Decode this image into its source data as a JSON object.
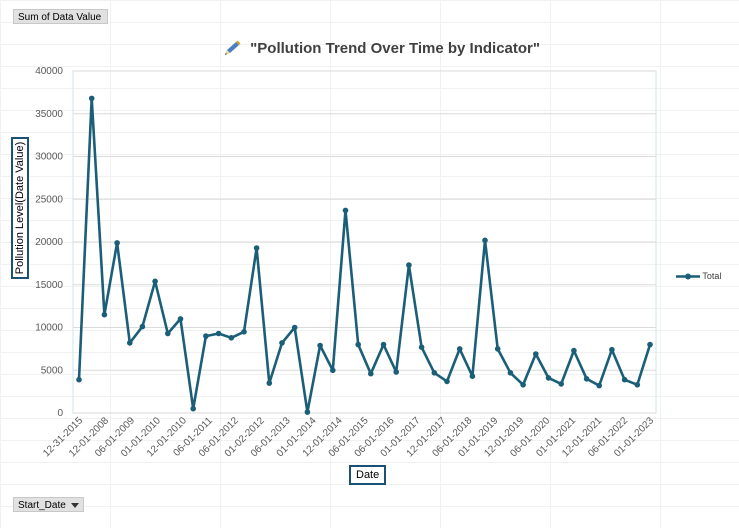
{
  "pivot_field": "Sum of Data Value",
  "date_field": "Start_Date",
  "chart_data": {
    "type": "line",
    "title": "\"Pollution Trend Over Time by Indicator\"",
    "title_icon": "pencil-icon",
    "xlabel": "Date",
    "ylabel": "Pollution Level(Date Value)",
    "ylim": [
      0,
      40000
    ],
    "yticks": [
      "0",
      "5000",
      "10000",
      "15000",
      "20000",
      "25000",
      "30000",
      "35000",
      "40000"
    ],
    "grid": true,
    "legend_position": "right",
    "color": "#1a5e78",
    "xtick_labels": [
      "12-31-2015",
      "12-01-2008",
      "06-01-2009",
      "01-01-2010",
      "12-01-2010",
      "06-01-2011",
      "06-01-2012",
      "01-02-2012",
      "06-01-2013",
      "01-01-2014",
      "12-01-2014",
      "06-01-2015",
      "06-01-2016",
      "01-01-2017",
      "12-01-2017",
      "06-01-2018",
      "01-01-2019",
      "12-01-2019",
      "06-01-2020",
      "01-01-2021",
      "12-01-2021",
      "06-01-2022",
      "01-01-2023"
    ],
    "series": [
      {
        "name": "Total",
        "values": [
          3900,
          36800,
          11500,
          19900,
          8200,
          10100,
          15400,
          9300,
          11000,
          500,
          9000,
          9300,
          8800,
          9500,
          19300,
          3500,
          8200,
          10000,
          100,
          7900,
          5000,
          23700,
          8000,
          4600,
          8000,
          4800,
          17300,
          7700,
          4700,
          3700,
          7500,
          4300,
          20200,
          7500,
          4700,
          3300,
          6900,
          4100,
          3400,
          7300,
          4000,
          3200,
          7400,
          3900,
          3300,
          8000
        ]
      }
    ]
  }
}
